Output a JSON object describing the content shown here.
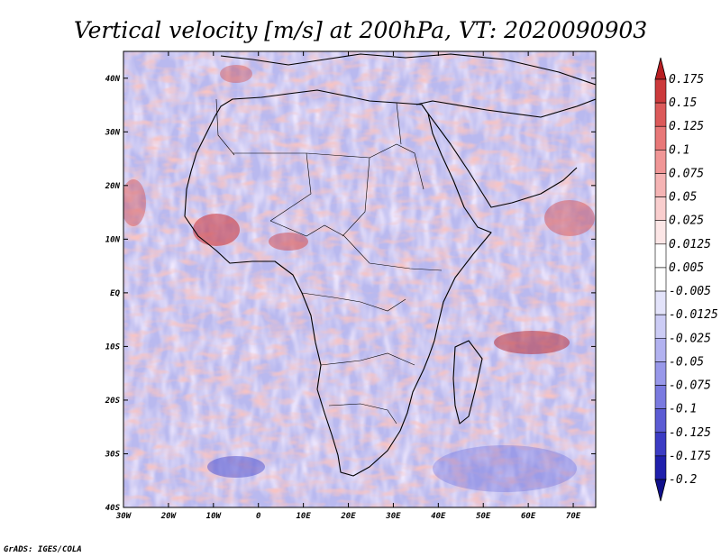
{
  "title": "Vertical velocity [m/s] at 200hPa, VT: 2020090903",
  "footer": "GrADS: IGES/COLA",
  "map": {
    "lat_range": [
      -40,
      45
    ],
    "lon_range": [
      -30,
      75
    ],
    "lat_ticks": [
      "40N",
      "30N",
      "20N",
      "10N",
      "EQ",
      "10S",
      "20S",
      "30S",
      "40S"
    ],
    "lon_ticks": [
      "30W",
      "20W",
      "10W",
      "0",
      "10E",
      "20E",
      "30E",
      "40E",
      "50E",
      "60E",
      "70E"
    ]
  },
  "colorbar": {
    "labels": [
      "0.175",
      "0.15",
      "0.125",
      "0.1",
      "0.075",
      "0.05",
      "0.025",
      "0.0125",
      "0.005",
      "-0.005",
      "-0.0125",
      "-0.025",
      "-0.05",
      "-0.075",
      "-0.1",
      "-0.125",
      "-0.175",
      "-0.2"
    ],
    "colors": [
      "#b81e22",
      "#cc3a3c",
      "#dc5a5a",
      "#e87878",
      "#f09696",
      "#f5b4b4",
      "#f9cece",
      "#fce6e6",
      "#ffffff",
      "#ffffff",
      "#e3e3fa",
      "#ccccf5",
      "#b2b2f0",
      "#9898ea",
      "#7a7ae0",
      "#5c5cd4",
      "#3c3cc4",
      "#2020ac",
      "#10108c"
    ]
  }
}
